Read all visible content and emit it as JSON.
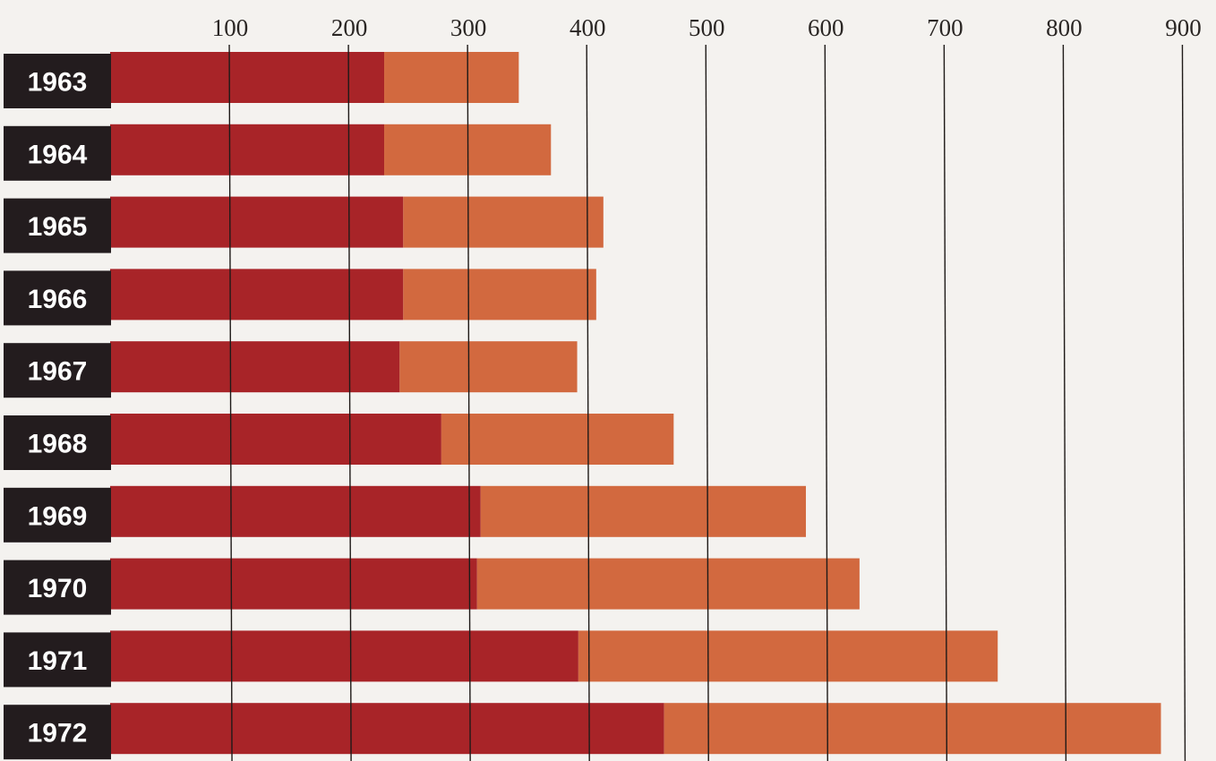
{
  "chart_data": {
    "type": "bar",
    "orientation": "horizontal",
    "stacked": true,
    "title": "",
    "xlabel": "",
    "ylabel": "",
    "categories": [
      "1963",
      "1964",
      "1965",
      "1966",
      "1967",
      "1968",
      "1969",
      "1970",
      "1971",
      "1972"
    ],
    "series": [
      {
        "color": "#a82428",
        "values": [
          230,
          230,
          246,
          246,
          243,
          278,
          311,
          308,
          393,
          465
        ]
      },
      {
        "color": "#d2693f",
        "values": [
          113,
          140,
          168,
          162,
          149,
          195,
          273,
          321,
          352,
          417
        ]
      }
    ],
    "x_ticks": [
      "100",
      "200",
      "300",
      "400",
      "500",
      "600",
      "700",
      "800",
      "900"
    ],
    "xlim": [
      0,
      900
    ],
    "grid": "vertical",
    "legend": "none",
    "category_label_bg": "#231c1e"
  }
}
